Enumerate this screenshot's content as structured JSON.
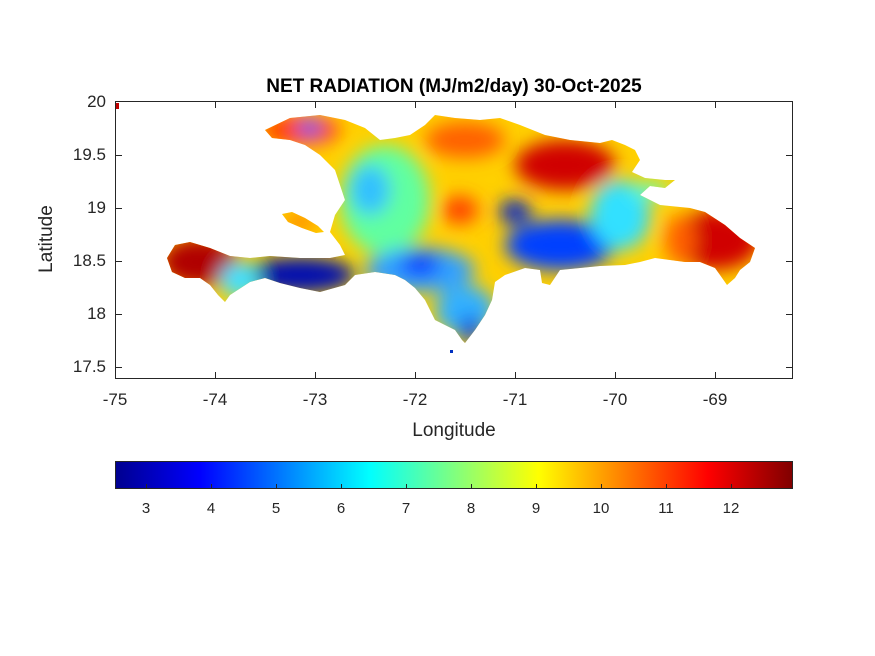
{
  "chart_data": {
    "type": "heatmap",
    "title": "NET RADIATION (MJ/m2/day) 30-Oct-2025",
    "xlabel": "Longitude",
    "ylabel": "Latitude",
    "xlim": [
      -75,
      -68.23
    ],
    "ylim": [
      17.4,
      20
    ],
    "xticks": [
      "-75",
      "-74",
      "-73",
      "-72",
      "-71",
      "-70",
      "-69"
    ],
    "yticks": [
      "20",
      "19.5",
      "19",
      "18.5",
      "18",
      "17.5"
    ],
    "colorbar": {
      "colormap": "jet",
      "range": [
        2.52,
        12.94
      ],
      "ticks": [
        "3",
        "4",
        "5",
        "6",
        "7",
        "8",
        "9",
        "10",
        "11",
        "12"
      ],
      "placement": "bottom"
    },
    "regions": [
      {
        "name": "southwest tip Haiti",
        "value": 12
      },
      {
        "name": "southern peninsula Haiti",
        "value": 3
      },
      {
        "name": "northwest Haiti",
        "value": 10
      },
      {
        "name": "central Haiti",
        "value": 7.5
      },
      {
        "name": "north-central DR",
        "value": 10
      },
      {
        "name": "northeast DR",
        "value": 11.5
      },
      {
        "name": "central-south DR",
        "value": 4
      },
      {
        "name": "east DR",
        "value": 11.5
      },
      {
        "name": "southwest DR peninsula",
        "value": 5
      }
    ]
  }
}
